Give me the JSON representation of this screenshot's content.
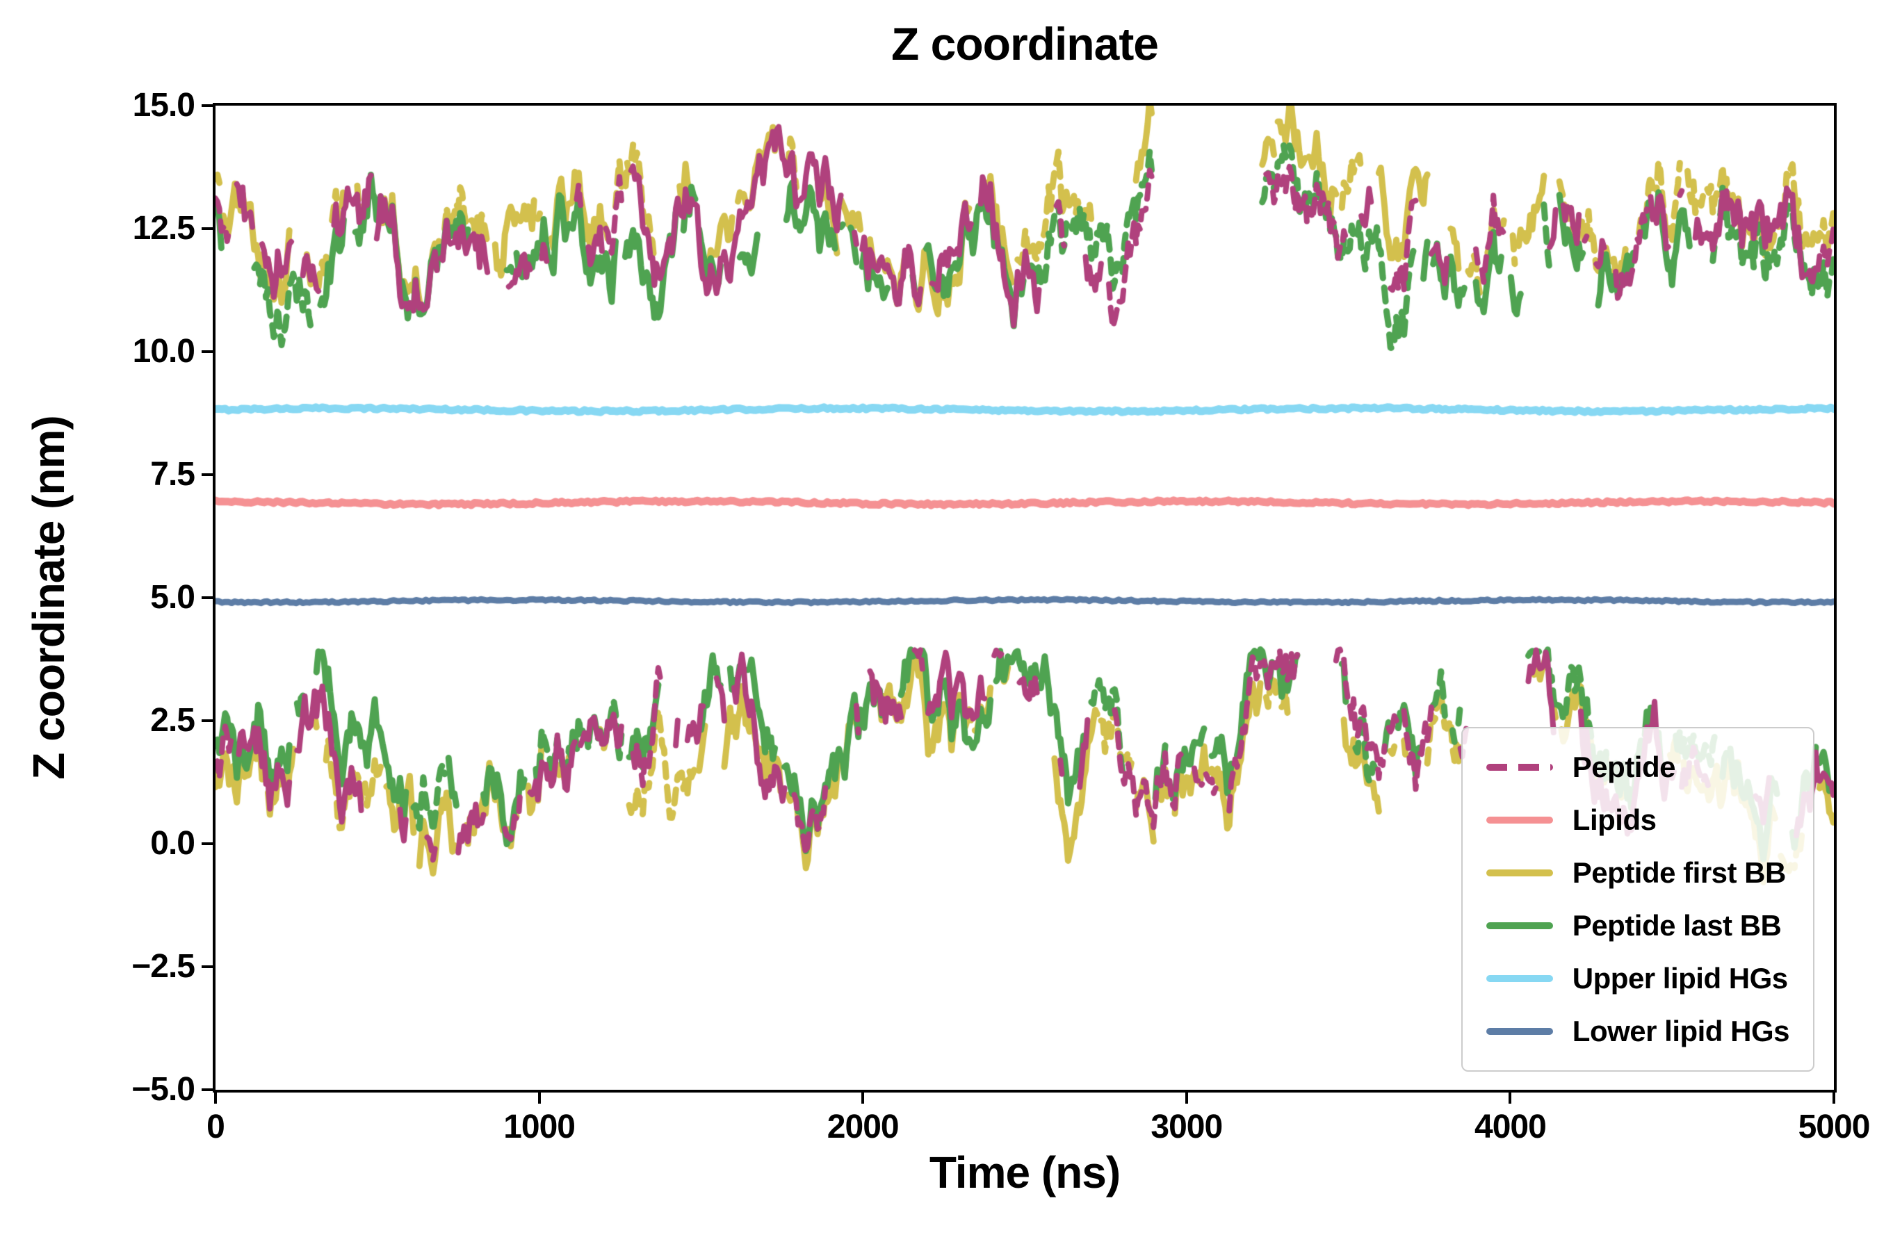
{
  "chart_data": {
    "type": "line",
    "title": "Z coordinate",
    "xlabel": "Time (ns)",
    "ylabel": "Z coordinate (nm)",
    "xlim": [
      0,
      5000
    ],
    "ylim": [
      -5.0,
      15.0
    ],
    "grid": false,
    "background": "#ffffff",
    "axis_color": "#000000",
    "xticks": [
      {
        "v": 0,
        "label": "0"
      },
      {
        "v": 1000,
        "label": "1000"
      },
      {
        "v": 2000,
        "label": "2000"
      },
      {
        "v": 3000,
        "label": "3000"
      },
      {
        "v": 4000,
        "label": "4000"
      },
      {
        "v": 5000,
        "label": "5000"
      }
    ],
    "yticks": [
      {
        "v": 15.0,
        "label": "15.0"
      },
      {
        "v": 12.5,
        "label": "12.5"
      },
      {
        "v": 10.0,
        "label": "10.0"
      },
      {
        "v": 7.5,
        "label": "7.5"
      },
      {
        "v": 5.0,
        "label": "5.0"
      },
      {
        "v": 2.5,
        "label": "2.5"
      },
      {
        "v": 0.0,
        "label": "0.0"
      },
      {
        "v": -2.5,
        "label": "−2.5"
      },
      {
        "v": -5.0,
        "label": "−5.0"
      }
    ],
    "legend": {
      "position": "lower-right",
      "border_color": "#cccccc",
      "background": "#ffffff",
      "entries": [
        {
          "label": "Peptide",
          "color": "#b0417d",
          "dashed": true
        },
        {
          "label": "Lipids",
          "color": "#f59193",
          "dashed": false
        },
        {
          "label": "Peptide first BB",
          "color": "#d3c04d",
          "dashed": false
        },
        {
          "label": "Peptide last BB",
          "color": "#4fa351",
          "dashed": false
        },
        {
          "label": "Upper lipid HGs",
          "color": "#87d8f3",
          "dashed": false
        },
        {
          "label": "Lower lipid HGs",
          "color": "#5d7da6",
          "dashed": false
        }
      ]
    },
    "flat_series": [
      {
        "name": "Upper lipid HGs",
        "color": "#87d8f3",
        "y": 8.82,
        "jitter": 0.05,
        "linewidth": 11
      },
      {
        "name": "Lipids",
        "color": "#f59193",
        "y": 6.93,
        "jitter": 0.05,
        "linewidth": 11
      },
      {
        "name": "Lower lipid HGs",
        "color": "#5d7da6",
        "y": 4.93,
        "jitter": 0.04,
        "linewidth": 9
      }
    ],
    "clusters": [
      {
        "id": "upper",
        "y_mean": 12.35,
        "y_min": 9.9,
        "y_max": 15.45,
        "seed": 11,
        "gaps": [
          [
            2895,
            3230
          ]
        ]
      },
      {
        "id": "lower",
        "y_mean": 1.65,
        "y_min": -1.55,
        "y_max": 3.95,
        "seed": 77,
        "gaps": [
          [
            3345,
            3460
          ],
          [
            3865,
            4055
          ]
        ]
      }
    ],
    "noisy_series": [
      {
        "name": "Peptide first BB",
        "color": "#d3c04d",
        "cluster_offsets": {
          "upper": 0.4,
          "lower": -0.25
        },
        "linewidth": 9,
        "dash_prob": 0.28,
        "seed": 3
      },
      {
        "name": "Peptide last BB",
        "color": "#4fa351",
        "cluster_offsets": {
          "upper": -0.3,
          "lower": 0.35
        },
        "linewidth": 9,
        "dash_prob": 0.22,
        "seed": 5
      },
      {
        "name": "Peptide",
        "color": "#b0417d",
        "cluster_offsets": {
          "upper": 0.0,
          "lower": 0.0
        },
        "linewidth": 8,
        "dash_prob": 0.5,
        "seed": 9
      }
    ],
    "sim": {
      "dt": 6,
      "step_sd": 0.5,
      "reversion": 0.06,
      "offset_sd": 0.17,
      "offset_reversion": 0.05,
      "offset_max": 1.7,
      "on_avg": 95,
      "off_avg": 28,
      "dash_len": 20,
      "gap_len": 14
    }
  }
}
